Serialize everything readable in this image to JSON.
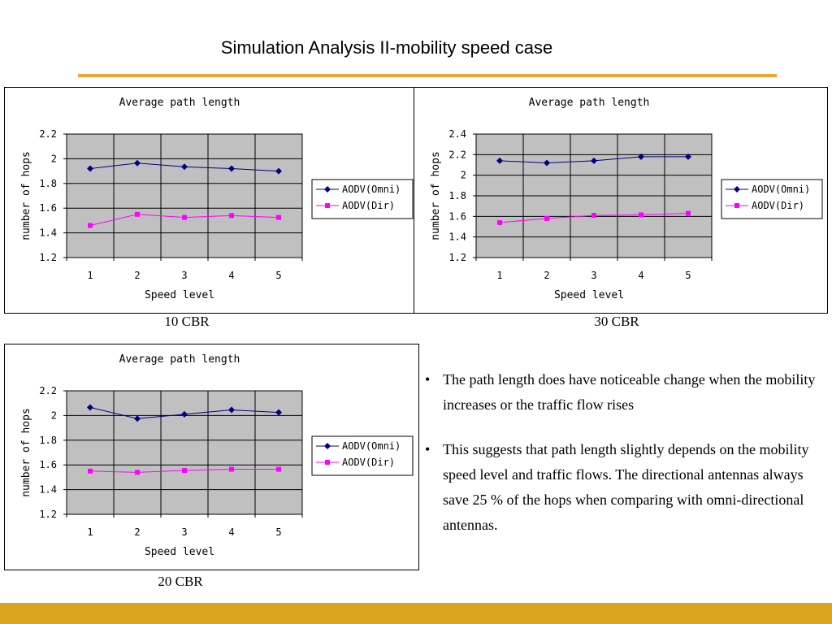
{
  "slide": {
    "title": "Simulation Analysis II-mobility speed case",
    "accent_color": "#f4a236",
    "footer_color": "#dba51d"
  },
  "captions": [
    "10 CBR",
    "30 CBR",
    "20 CBR"
  ],
  "bullets": [
    {
      "marker": "•",
      "text": "The path length does have noticeable change when the mobility increases or the traffic flow rises"
    },
    {
      "marker": "•",
      "text": "This suggests that path length slightly depends on the mobility speed level and traffic flows. The directional antennas always save 25 % of the hops when comparing with omni-directional antennas."
    }
  ],
  "chart_data": [
    {
      "type": "line",
      "title": "Average path length",
      "xlabel": "Speed level",
      "ylabel": "number of hops",
      "x": [
        1,
        2,
        3,
        4,
        5
      ],
      "ylim": [
        1.2,
        2.2
      ],
      "yticks": [
        "1.2",
        "1.4",
        "1.6",
        "1.8",
        "2",
        "2.2"
      ],
      "grid": true,
      "legend": "right",
      "plot_bg": "#c0c0c0",
      "series": [
        {
          "name": "AODV(Omni)",
          "color": "#000080",
          "marker": "diamond",
          "values": [
            1.92,
            1.965,
            1.935,
            1.92,
            1.9
          ]
        },
        {
          "name": "AODV(Dir)",
          "color": "#ff00ff",
          "marker": "square",
          "values": [
            1.46,
            1.55,
            1.525,
            1.54,
            1.525
          ]
        }
      ]
    },
    {
      "type": "line",
      "title": "Average path length",
      "xlabel": "Speed level",
      "ylabel": "number of hops",
      "x": [
        1,
        2,
        3,
        4,
        5
      ],
      "ylim": [
        1.2,
        2.4
      ],
      "yticks": [
        "1.2",
        "1.4",
        "1.6",
        "1.8",
        "2",
        "2.2",
        "2.4"
      ],
      "grid": true,
      "legend": "right",
      "plot_bg": "#c0c0c0",
      "series": [
        {
          "name": "AODV(Omni)",
          "color": "#000080",
          "marker": "diamond",
          "values": [
            2.14,
            2.12,
            2.14,
            2.18,
            2.18
          ]
        },
        {
          "name": "AODV(Dir)",
          "color": "#ff00ff",
          "marker": "square",
          "values": [
            1.54,
            1.58,
            1.61,
            1.615,
            1.63
          ]
        }
      ]
    },
    {
      "type": "line",
      "title": "Average path length",
      "xlabel": "Speed level",
      "ylabel": "number of hops",
      "x": [
        1,
        2,
        3,
        4,
        5
      ],
      "ylim": [
        1.2,
        2.2
      ],
      "yticks": [
        "1.2",
        "1.4",
        "1.6",
        "1.8",
        "2",
        "2.2"
      ],
      "grid": true,
      "legend": "right",
      "plot_bg": "#c0c0c0",
      "series": [
        {
          "name": "AODV(Omni)",
          "color": "#000080",
          "marker": "diamond",
          "values": [
            2.065,
            1.975,
            2.01,
            2.045,
            2.025
          ]
        },
        {
          "name": "AODV(Dir)",
          "color": "#ff00ff",
          "marker": "square",
          "values": [
            1.55,
            1.54,
            1.555,
            1.565,
            1.565
          ]
        }
      ]
    }
  ]
}
